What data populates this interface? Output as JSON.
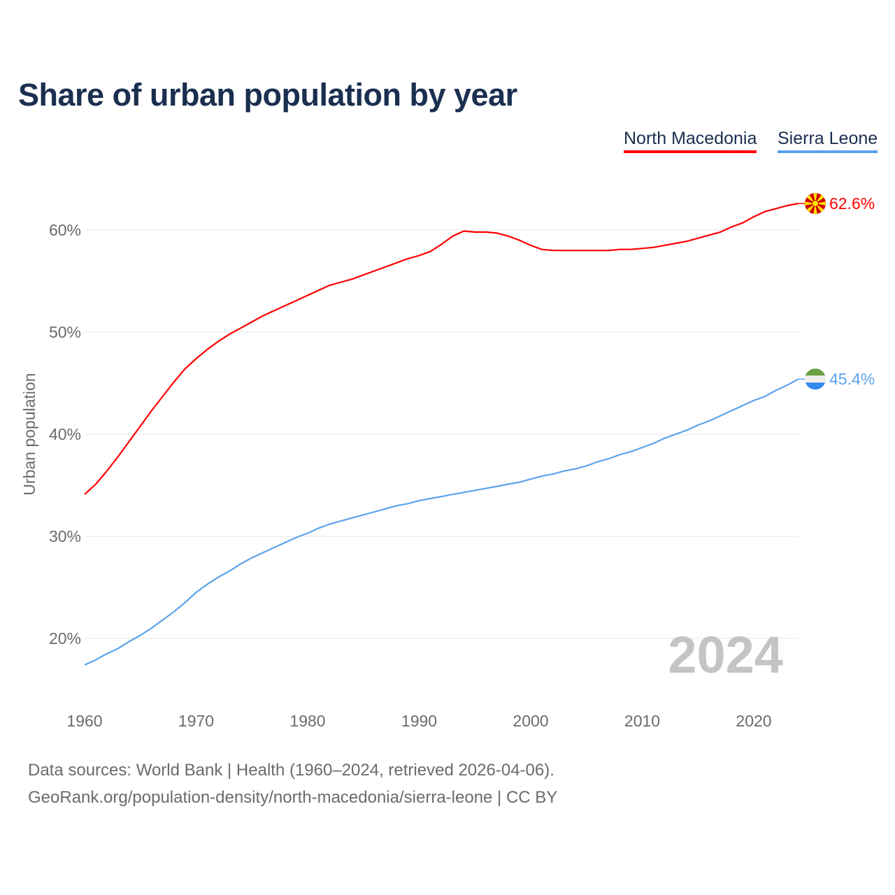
{
  "chart_data": {
    "type": "line",
    "title": "Share of urban population by year",
    "ylabel": "Urban population",
    "xlabel": "",
    "ylim": [
      15,
      65
    ],
    "xlim": [
      1960,
      2024
    ],
    "grid": true,
    "legend_position": "top-right",
    "y_ticks": [
      "20%",
      "30%",
      "40%",
      "50%",
      "60%"
    ],
    "y_tick_values": [
      20,
      30,
      40,
      50,
      60
    ],
    "x_ticks": [
      "1960",
      "1970",
      "1980",
      "1990",
      "2000",
      "2010",
      "2020"
    ],
    "x_start": 1960,
    "year_watermark": "2024",
    "series": [
      {
        "name": "North Macedonia",
        "color": "#ff0000",
        "end_label": "62.6%",
        "icon": "north-macedonia-flag-icon",
        "values": [
          34.1,
          35.1,
          36.4,
          37.8,
          39.3,
          40.8,
          42.3,
          43.7,
          45.1,
          46.4,
          47.4,
          48.3,
          49.1,
          49.8,
          50.4,
          51.0,
          51.6,
          52.1,
          52.6,
          53.1,
          53.6,
          54.1,
          54.6,
          54.9,
          55.2,
          55.6,
          56.0,
          56.4,
          56.8,
          57.2,
          57.5,
          57.9,
          58.6,
          59.4,
          59.9,
          59.8,
          59.8,
          59.7,
          59.4,
          59.0,
          58.5,
          58.1,
          58.0,
          58.0,
          58.0,
          58.0,
          58.0,
          58.0,
          58.1,
          58.1,
          58.2,
          58.3,
          58.5,
          58.7,
          58.9,
          59.2,
          59.5,
          59.8,
          60.3,
          60.7,
          61.3,
          61.8,
          62.1,
          62.4,
          62.6
        ]
      },
      {
        "name": "Sierra Leone",
        "color": "#5ba3ec",
        "end_label": "45.4%",
        "icon": "sierra-leone-flag-icon",
        "values": [
          17.4,
          17.9,
          18.5,
          19.0,
          19.7,
          20.3,
          21.0,
          21.8,
          22.6,
          23.5,
          24.5,
          25.3,
          26.0,
          26.6,
          27.3,
          27.9,
          28.4,
          28.9,
          29.4,
          29.9,
          30.3,
          30.8,
          31.2,
          31.5,
          31.8,
          32.1,
          32.4,
          32.7,
          33.0,
          33.2,
          33.5,
          33.7,
          33.9,
          34.1,
          34.3,
          34.5,
          34.7,
          34.9,
          35.1,
          35.3,
          35.6,
          35.9,
          36.1,
          36.4,
          36.6,
          36.9,
          37.3,
          37.6,
          38.0,
          38.3,
          38.7,
          39.1,
          39.6,
          40.0,
          40.4,
          40.9,
          41.3,
          41.8,
          42.3,
          42.8,
          43.3,
          43.7,
          44.3,
          44.8,
          45.4
        ]
      }
    ]
  },
  "footer": {
    "line1": "Data sources: World Bank | Health (1960–2024, retrieved 2026-04-06).",
    "line2": "GeoRank.org/population-density/north-macedonia/sierra-leone | CC BY"
  }
}
